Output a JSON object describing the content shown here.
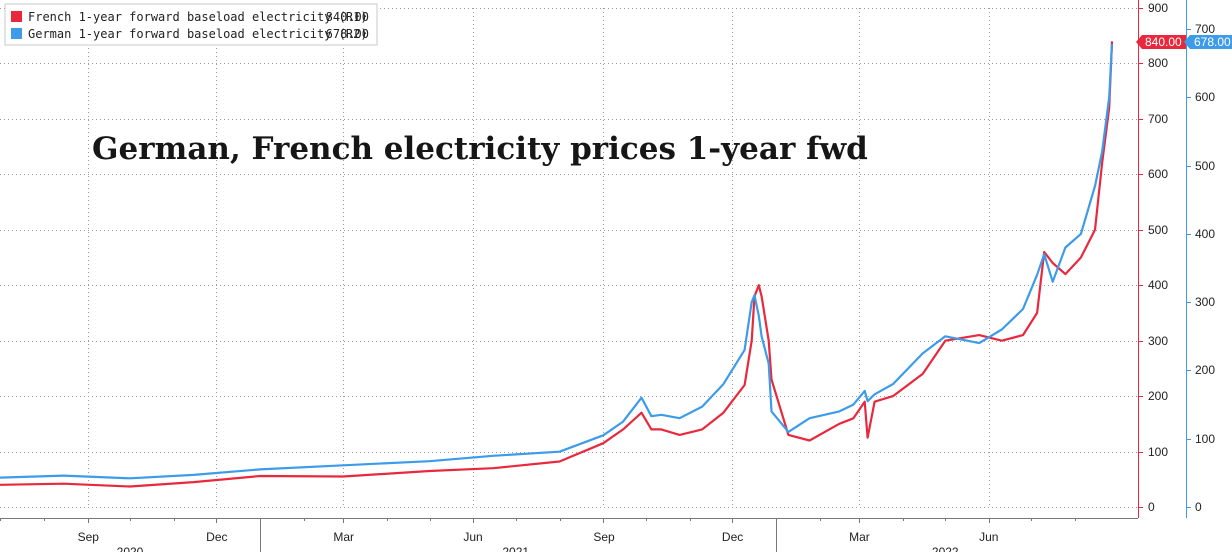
{
  "colors": {
    "french": "#e8293d",
    "german": "#3d9be9"
  },
  "chart_data": {
    "type": "line",
    "title": "German, French electricity prices 1-year fwd",
    "legend_placement": "top-left",
    "grid": true,
    "x_ticks": [
      "Sep",
      "Dec",
      "Mar",
      "Jun",
      "Sep",
      "Dec",
      "Mar",
      "Jun"
    ],
    "x_years": [
      "2020",
      "2021",
      "2022"
    ],
    "yaxis_r1": {
      "ylim": [
        0,
        900
      ],
      "ticks": [
        "0",
        "100",
        "200",
        "300",
        "400",
        "500",
        "600",
        "700",
        "800",
        "900"
      ]
    },
    "yaxis_r2": {
      "ylim": [
        0,
        700
      ],
      "ticks": [
        "0",
        "100",
        "200",
        "300",
        "400",
        "500",
        "600",
        "700"
      ]
    },
    "series": [
      {
        "name": "French 1-year forward baseload electricity (R1)",
        "legend_value": "840.00",
        "last_label": "840.00",
        "axis": "R1",
        "x": [
          "2020-07-01",
          "2020-08-15",
          "2020-10-01",
          "2020-11-15",
          "2021-01-01",
          "2021-03-01",
          "2021-05-01",
          "2021-06-15",
          "2021-08-01",
          "2021-09-01",
          "2021-09-15",
          "2021-09-28",
          "2021-10-05",
          "2021-10-12",
          "2021-10-25",
          "2021-11-10",
          "2021-11-25",
          "2021-12-10",
          "2021-12-15",
          "2021-12-17",
          "2021-12-20",
          "2021-12-22",
          "2021-12-27",
          "2021-12-29",
          "2022-01-10",
          "2022-01-25",
          "2022-02-15",
          "2022-02-25",
          "2022-03-05",
          "2022-03-07",
          "2022-03-12",
          "2022-03-25",
          "2022-04-15",
          "2022-05-01",
          "2022-05-25",
          "2022-06-10",
          "2022-06-25",
          "2022-07-05",
          "2022-07-10",
          "2022-07-16",
          "2022-07-25",
          "2022-08-05",
          "2022-08-15",
          "2022-08-20",
          "2022-08-25",
          "2022-08-27"
        ],
        "values": [
          40,
          42,
          37,
          45,
          56,
          55,
          65,
          70,
          82,
          115,
          140,
          170,
          140,
          140,
          130,
          140,
          170,
          220,
          300,
          380,
          400,
          380,
          300,
          230,
          130,
          120,
          150,
          160,
          190,
          125,
          190,
          200,
          240,
          300,
          310,
          300,
          310,
          350,
          460,
          440,
          420,
          450,
          500,
          620,
          720,
          840
        ]
      },
      {
        "name": "German 1-year forward baseload electricity (R2)",
        "legend_value": "678.00",
        "last_label": "678.00",
        "axis": "R2",
        "x": [
          "2020-07-01",
          "2020-08-15",
          "2020-10-01",
          "2020-11-15",
          "2021-01-01",
          "2021-03-01",
          "2021-05-01",
          "2021-06-15",
          "2021-08-01",
          "2021-09-01",
          "2021-09-15",
          "2021-09-28",
          "2021-10-05",
          "2021-10-12",
          "2021-10-25",
          "2021-11-10",
          "2021-11-25",
          "2021-12-10",
          "2021-12-15",
          "2021-12-17",
          "2021-12-20",
          "2021-12-22",
          "2021-12-27",
          "2021-12-29",
          "2022-01-10",
          "2022-01-25",
          "2022-02-15",
          "2022-02-25",
          "2022-03-05",
          "2022-03-07",
          "2022-03-12",
          "2022-03-25",
          "2022-04-15",
          "2022-05-01",
          "2022-05-25",
          "2022-06-10",
          "2022-06-25",
          "2022-07-05",
          "2022-07-10",
          "2022-07-16",
          "2022-07-25",
          "2022-08-05",
          "2022-08-15",
          "2022-08-20",
          "2022-08-25",
          "2022-08-27"
        ],
        "values": [
          43,
          46,
          42,
          47,
          55,
          61,
          67,
          75,
          81,
          105,
          125,
          160,
          133,
          135,
          130,
          147,
          180,
          230,
          300,
          310,
          280,
          250,
          210,
          140,
          110,
          130,
          140,
          150,
          170,
          155,
          165,
          180,
          225,
          250,
          240,
          260,
          290,
          340,
          370,
          330,
          380,
          400,
          470,
          520,
          600,
          678
        ]
      }
    ]
  }
}
